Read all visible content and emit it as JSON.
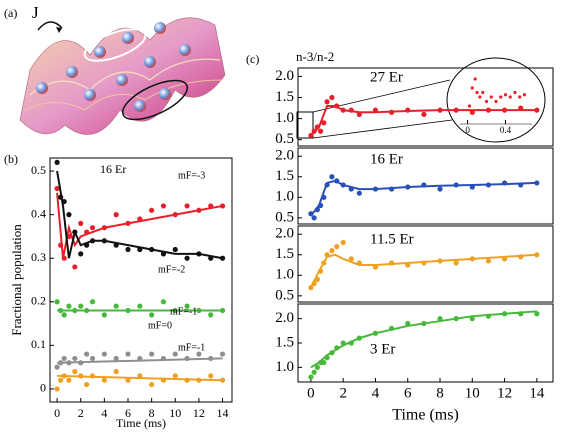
{
  "panel_labels": [
    "(a)",
    "(b)",
    "(c)"
  ],
  "illustration": {
    "label": "J"
  },
  "chart_data": [
    {
      "type": "scatter",
      "annotation": "16 Er",
      "xlabel": "Time (ms)",
      "ylabel": "Fractional population",
      "xlim": [
        -0.6,
        14.8
      ],
      "ylim": [
        -0.03,
        0.53
      ],
      "xticks": [
        0,
        2,
        4,
        6,
        8,
        10,
        12,
        14
      ],
      "yticks": [
        0,
        {
          "value": 0.1,
          "label": "0.1"
        },
        {
          "value": 0.2,
          "label": "0.2"
        },
        {
          "value": 0.3,
          "label": "0.3"
        },
        {
          "value": 0.4,
          "label": "0.4"
        },
        {
          "value": 0.5,
          "label": "0.5"
        }
      ],
      "series": [
        {
          "name": "mF=-3",
          "color": "#e8202a",
          "x": [
            0,
            0.3,
            0.6,
            1,
            1.5,
            2,
            2.5,
            3,
            4,
            5,
            6,
            7,
            8,
            9,
            10,
            11,
            12,
            13,
            14
          ],
          "values": [
            0.46,
            0.33,
            0.3,
            0.35,
            0.28,
            0.38,
            0.36,
            0.37,
            0.37,
            0.4,
            0.38,
            0.39,
            0.41,
            0.42,
            0.4,
            0.42,
            0.41,
            0.42,
            0.42
          ],
          "fit_x": [
            0,
            0.5,
            1,
            1.5,
            2,
            3,
            4,
            6,
            8,
            10,
            12,
            14
          ],
          "fit_values": [
            0.45,
            0.3,
            0.37,
            0.33,
            0.35,
            0.36,
            0.37,
            0.38,
            0.39,
            0.4,
            0.41,
            0.42
          ]
        },
        {
          "name": "mF=-2",
          "color": "#111111",
          "x": [
            0,
            0.3,
            0.6,
            1,
            1.5,
            2,
            2.5,
            3,
            4,
            5,
            6,
            7,
            8,
            9,
            10,
            11,
            12,
            13,
            14
          ],
          "values": [
            0.52,
            0.44,
            0.43,
            0.4,
            0.36,
            0.31,
            0.33,
            0.34,
            0.34,
            0.33,
            0.32,
            0.32,
            0.32,
            0.31,
            0.32,
            0.3,
            0.31,
            0.3,
            0.3
          ],
          "fit_x": [
            0,
            0.5,
            1,
            1.5,
            2,
            3,
            4,
            6,
            8,
            10,
            12,
            14
          ],
          "fit_values": [
            0.5,
            0.42,
            0.3,
            0.36,
            0.33,
            0.34,
            0.34,
            0.33,
            0.32,
            0.31,
            0.31,
            0.3
          ]
        },
        {
          "name": "mF=-1",
          "color": "#46b83a",
          "x": [
            0,
            0.3,
            0.6,
            1,
            1.5,
            2,
            2.5,
            3,
            4,
            5,
            6,
            7,
            8,
            9,
            10,
            11,
            12,
            13,
            14
          ],
          "values": [
            0.2,
            0.18,
            0.17,
            0.19,
            0.18,
            0.19,
            0.18,
            0.2,
            0.17,
            0.19,
            0.18,
            0.19,
            0.17,
            0.2,
            0.18,
            0.19,
            0.18,
            0.17,
            0.18
          ],
          "fit_x": [
            0,
            14
          ],
          "fit_values": [
            0.18,
            0.18
          ]
        },
        {
          "name": "mF=0",
          "color": "#8f8f8f",
          "x": [
            0,
            0.3,
            0.6,
            1,
            1.5,
            2,
            2.5,
            3,
            4,
            5,
            6,
            7,
            8,
            9,
            10,
            11,
            12,
            13,
            14
          ],
          "values": [
            0.05,
            0.06,
            0.07,
            0.06,
            0.07,
            0.06,
            0.08,
            0.07,
            0.08,
            0.07,
            0.08,
            0.07,
            0.08,
            0.07,
            0.08,
            0.07,
            0.08,
            0.07,
            0.08
          ],
          "fit_x": [
            0,
            14
          ],
          "fit_values": [
            0.06,
            0.07
          ]
        },
        {
          "name": "mF=-1",
          "color": "#f0a020",
          "x": [
            0,
            0.3,
            0.6,
            1,
            1.5,
            2,
            2.5,
            3,
            4,
            5,
            6,
            7,
            8,
            9,
            10,
            11,
            12,
            13,
            14
          ],
          "values": [
            0.0,
            0.02,
            0.03,
            0.02,
            0.04,
            0.03,
            0.01,
            0.03,
            0.02,
            0.04,
            0.02,
            0.03,
            0.01,
            0.02,
            0.03,
            0.02,
            0.02,
            0.03,
            0.02
          ],
          "fit_x": [
            0,
            14
          ],
          "fit_values": [
            0.03,
            0.02
          ]
        }
      ]
    },
    {
      "type": "scatter",
      "annotation": "27 Er",
      "ylabel": "n-3/n-2",
      "xlim": [
        -0.8,
        15
      ],
      "ylim": [
        0.35,
        2.2
      ],
      "yticks": [
        {
          "value": 0.5,
          "label": "0.5"
        },
        {
          "value": 1,
          "label": "1.0"
        },
        {
          "value": 1.5,
          "label": "1.5"
        },
        {
          "value": 2,
          "label": "2.0"
        }
      ],
      "series": [
        {
          "color": "#e8202a",
          "x": [
            0,
            0.2,
            0.4,
            0.6,
            0.8,
            1,
            1.3,
            1.6,
            2,
            2.5,
            3,
            4,
            5,
            6,
            7,
            8,
            9,
            10,
            11,
            12,
            13,
            14
          ],
          "values": [
            0.6,
            0.7,
            0.8,
            0.7,
            0.9,
            1.4,
            1.5,
            1.3,
            1.2,
            1.2,
            1.1,
            1.2,
            1.15,
            1.2,
            1.1,
            1.2,
            1.2,
            1.15,
            1.2,
            1.2,
            1.25,
            1.2
          ],
          "fit_x": [
            0,
            0.5,
            1,
            1.5,
            2,
            3,
            4,
            6,
            8,
            10,
            12,
            14
          ],
          "fit_values": [
            0.6,
            0.8,
            1.3,
            1.3,
            1.2,
            1.15,
            1.15,
            1.18,
            1.2,
            1.2,
            1.2,
            1.2
          ]
        }
      ]
    },
    {
      "type": "scatter",
      "annotation": "16 Er",
      "xlim": [
        -0.8,
        15
      ],
      "ylim": [
        0.35,
        2.2
      ],
      "yticks": [
        {
          "value": 0.5,
          "label": "0.5"
        },
        {
          "value": 1,
          "label": "1.0"
        },
        {
          "value": 1.5,
          "label": "1.5"
        },
        {
          "value": 2,
          "label": "2.0"
        }
      ],
      "series": [
        {
          "color": "#2a4fb8",
          "x": [
            0,
            0.2,
            0.4,
            0.6,
            0.8,
            1,
            1.3,
            1.6,
            2,
            2.5,
            3,
            4,
            5,
            6,
            7,
            8,
            9,
            10,
            11,
            12,
            13,
            14
          ],
          "values": [
            0.6,
            0.5,
            0.7,
            0.8,
            1.0,
            1.3,
            1.5,
            1.4,
            1.3,
            1.2,
            1.1,
            1.2,
            1.2,
            1.25,
            1.3,
            1.2,
            1.3,
            1.25,
            1.3,
            1.35,
            1.3,
            1.35
          ],
          "fit_x": [
            0,
            0.5,
            1,
            1.5,
            2,
            3,
            4,
            6,
            8,
            10,
            12,
            14
          ],
          "fit_values": [
            0.55,
            0.8,
            1.35,
            1.4,
            1.3,
            1.2,
            1.2,
            1.25,
            1.28,
            1.3,
            1.32,
            1.35
          ]
        }
      ]
    },
    {
      "type": "scatter",
      "annotation": "11.5 Er",
      "xlim": [
        -0.8,
        15
      ],
      "ylim": [
        0.35,
        2.2
      ],
      "yticks": [
        {
          "value": 0.5,
          "label": "0.5"
        },
        {
          "value": 1,
          "label": "1.0"
        },
        {
          "value": 1.5,
          "label": "1.5"
        },
        {
          "value": 2,
          "label": "2.0"
        }
      ],
      "series": [
        {
          "color": "#f0a020",
          "x": [
            0,
            0.2,
            0.4,
            0.6,
            0.8,
            1,
            1.3,
            1.6,
            2,
            2.5,
            3,
            4,
            5,
            6,
            7,
            8,
            9,
            10,
            11,
            12,
            13,
            14
          ],
          "values": [
            0.7,
            0.8,
            0.9,
            1.1,
            1.3,
            1.5,
            1.6,
            1.7,
            1.8,
            1.4,
            1.3,
            1.2,
            1.3,
            1.25,
            1.3,
            1.35,
            1.3,
            1.4,
            1.35,
            1.4,
            1.45,
            1.5
          ],
          "fit_x": [
            0,
            0.5,
            1,
            1.5,
            2,
            3,
            4,
            6,
            8,
            10,
            12,
            14
          ],
          "fit_values": [
            0.7,
            1.1,
            1.45,
            1.5,
            1.4,
            1.25,
            1.25,
            1.3,
            1.35,
            1.4,
            1.45,
            1.5
          ]
        }
      ]
    },
    {
      "type": "scatter",
      "annotation": "3 Er",
      "xlabel": "Time (ms)",
      "xlim": [
        -0.8,
        15
      ],
      "ylim": [
        0.7,
        2.3
      ],
      "xticks": [
        0,
        2,
        4,
        6,
        8,
        10,
        12,
        14
      ],
      "yticks": [
        {
          "value": 1,
          "label": "1.0"
        },
        {
          "value": 1.5,
          "label": "1.5"
        },
        {
          "value": 2,
          "label": "2.0"
        }
      ],
      "series": [
        {
          "color": "#46b83a",
          "x": [
            0,
            0.2,
            0.4,
            0.6,
            0.8,
            1,
            1.3,
            1.6,
            2,
            2.5,
            3,
            4,
            5,
            6,
            7,
            8,
            9,
            10,
            11,
            12,
            13,
            14
          ],
          "values": [
            0.8,
            0.9,
            1.0,
            1.1,
            1.1,
            1.2,
            1.3,
            1.4,
            1.5,
            1.5,
            1.6,
            1.7,
            1.8,
            1.9,
            1.9,
            2.0,
            2.0,
            2.0,
            2.05,
            2.1,
            2.1,
            2.1
          ],
          "fit_x": [
            0,
            0.5,
            1,
            1.5,
            2,
            3,
            4,
            6,
            8,
            10,
            12,
            14
          ],
          "fit_values": [
            1.0,
            1.1,
            1.25,
            1.35,
            1.45,
            1.6,
            1.7,
            1.85,
            1.95,
            2.05,
            2.1,
            2.15
          ]
        }
      ]
    },
    {
      "type": "scatter",
      "xlim": [
        -0.08,
        0.68
      ],
      "ylim": [
        0.5,
        1.7
      ],
      "xticks": [
        0,
        0.4
      ],
      "series": [
        {
          "color": "#e8202a",
          "x": [
            0.02,
            0.05,
            0.08,
            0.1,
            0.13,
            0.16,
            0.2,
            0.25,
            0.3,
            0.35,
            0.4,
            0.45,
            0.5,
            0.55,
            0.6
          ],
          "values": [
            0.9,
            1.3,
            1.5,
            1.2,
            1.1,
            1.2,
            1.0,
            1.1,
            1.0,
            1.1,
            1.15,
            1.1,
            1.2,
            1.1,
            1.15
          ]
        }
      ]
    }
  ]
}
